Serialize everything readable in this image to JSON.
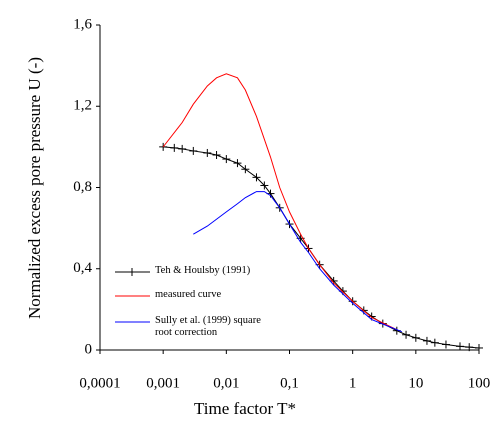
{
  "chart_data": {
    "type": "line",
    "xlabel": "Time factor T*",
    "ylabel": "Normalized excess pore pressure U (-)",
    "xscale": "log",
    "xlim": [
      0.0001,
      100
    ],
    "ylim": [
      0,
      1.6
    ],
    "xticks": [
      {
        "value": 0.0001,
        "label": "0,0001"
      },
      {
        "value": 0.001,
        "label": "0,001"
      },
      {
        "value": 0.01,
        "label": "0,01"
      },
      {
        "value": 0.1,
        "label": "0,1"
      },
      1,
      10,
      100
    ],
    "yticks": [
      0,
      {
        "value": 0.4,
        "label": "0,4"
      },
      {
        "value": 0.8,
        "label": "0,8"
      },
      {
        "value": 1.2,
        "label": "1,2"
      },
      {
        "value": 1.6,
        "label": "1,6"
      }
    ],
    "legend": "lower left",
    "series": [
      {
        "name": "Teh & Houlsby (1991)",
        "color": "#000000",
        "marker": "+",
        "x": [
          0.001,
          0.0015,
          0.002,
          0.003,
          0.005,
          0.007,
          0.01,
          0.015,
          0.02,
          0.03,
          0.04,
          0.05,
          0.07,
          0.1,
          0.15,
          0.2,
          0.3,
          0.5,
          0.7,
          1,
          1.5,
          2,
          3,
          5,
          7,
          10,
          15,
          20,
          30,
          50,
          70,
          100
        ],
        "values": [
          1.0,
          0.995,
          0.99,
          0.98,
          0.97,
          0.96,
          0.94,
          0.92,
          0.89,
          0.85,
          0.81,
          0.77,
          0.7,
          0.62,
          0.55,
          0.5,
          0.42,
          0.34,
          0.29,
          0.24,
          0.195,
          0.165,
          0.13,
          0.095,
          0.075,
          0.06,
          0.045,
          0.036,
          0.027,
          0.018,
          0.014,
          0.01
        ]
      },
      {
        "name": "measured curve",
        "color": "#ff0000",
        "x": [
          0.001,
          0.002,
          0.003,
          0.005,
          0.007,
          0.01,
          0.015,
          0.02,
          0.03,
          0.05,
          0.07,
          0.1,
          0.15,
          0.2,
          0.3,
          0.5,
          1,
          2,
          5
        ],
        "values": [
          1.0,
          1.12,
          1.21,
          1.3,
          1.34,
          1.36,
          1.34,
          1.28,
          1.15,
          0.95,
          0.8,
          0.68,
          0.57,
          0.5,
          0.42,
          0.33,
          0.24,
          0.16,
          0.1
        ]
      },
      {
        "name": "Sully et al. (1999) square root correction",
        "color": "#0000ff",
        "x": [
          0.003,
          0.005,
          0.01,
          0.015,
          0.02,
          0.03,
          0.04,
          0.05,
          0.07,
          0.1,
          0.15,
          0.2,
          0.3,
          0.5,
          1,
          2,
          6
        ],
        "values": [
          0.57,
          0.61,
          0.68,
          0.72,
          0.75,
          0.78,
          0.78,
          0.76,
          0.7,
          0.62,
          0.53,
          0.48,
          0.4,
          0.32,
          0.23,
          0.15,
          0.09
        ]
      }
    ]
  }
}
